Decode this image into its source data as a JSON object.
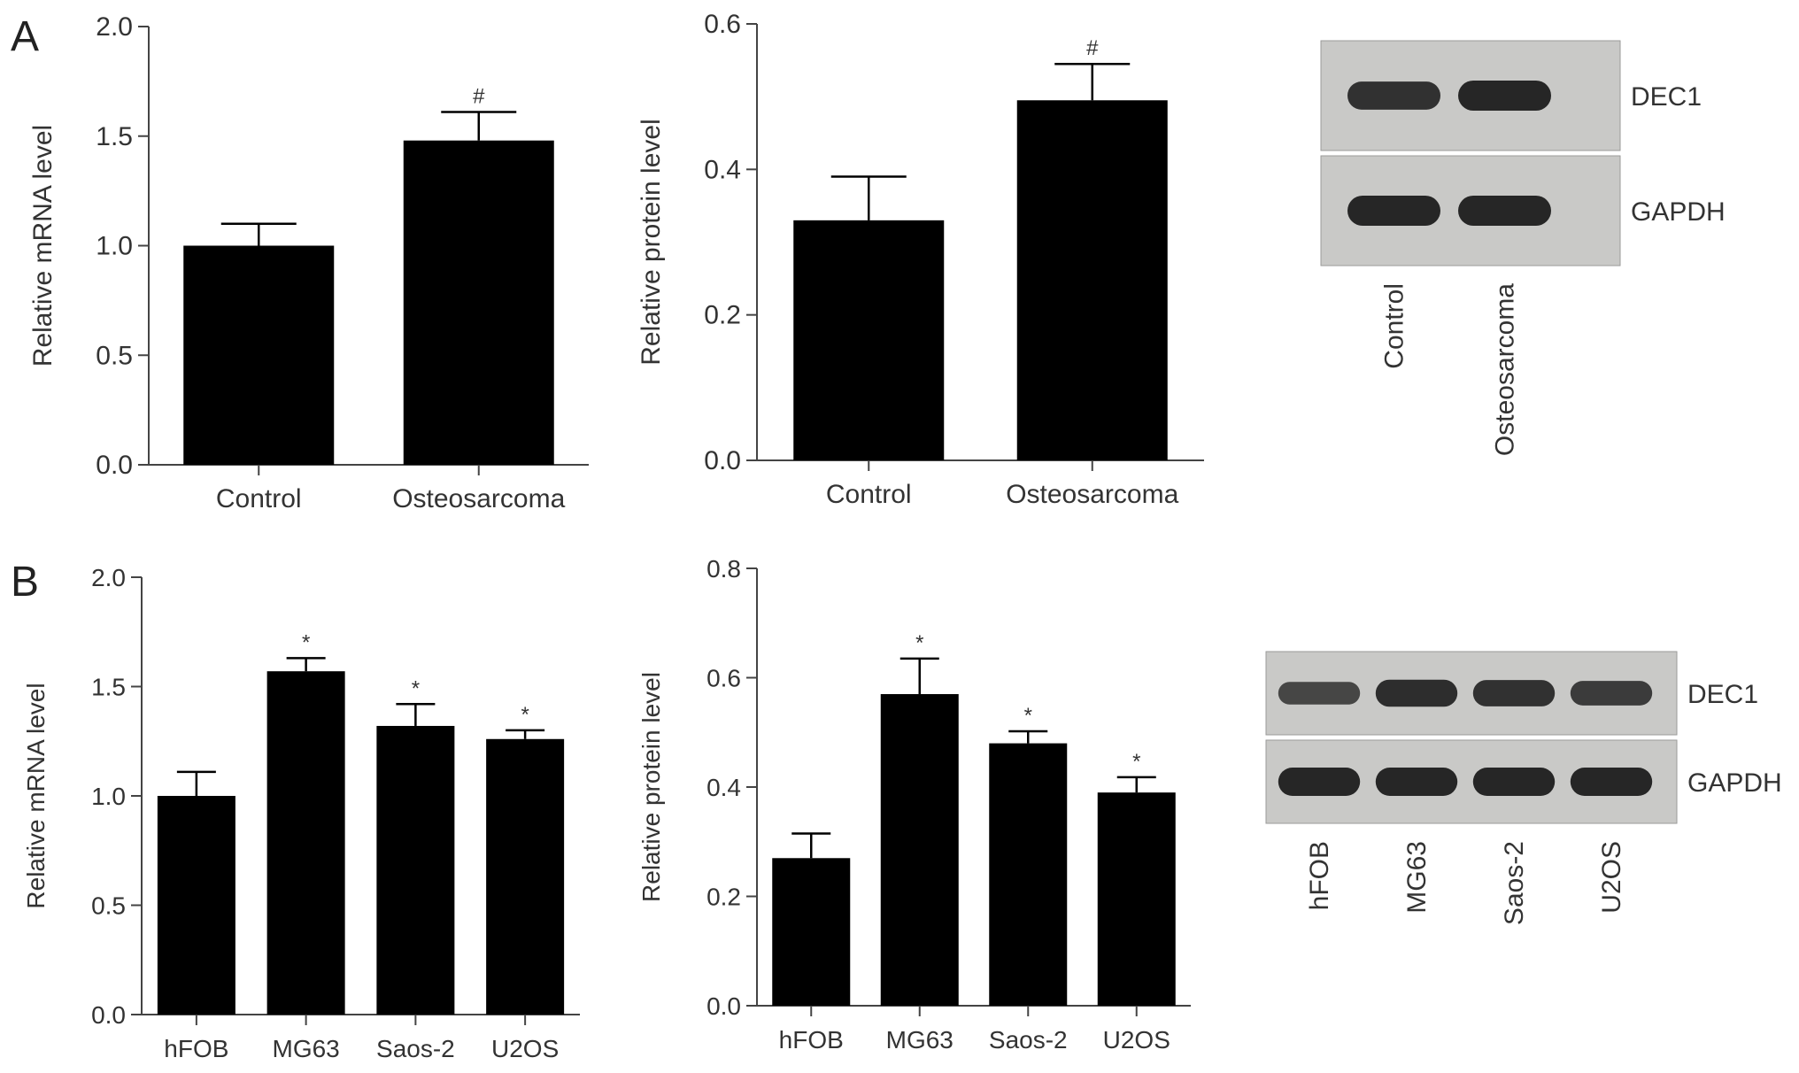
{
  "panels": [
    {
      "letter": "A"
    },
    {
      "letter": "B"
    }
  ],
  "chart_data": [
    {
      "id": "a-mrna",
      "panel": "A",
      "type": "bar",
      "title": "",
      "xlabel": "",
      "ylabel": "Relative mRNA level",
      "categories": [
        "Control",
        "Osteosarcoma"
      ],
      "values": [
        1.0,
        1.48
      ],
      "errors": [
        0.1,
        0.13
      ],
      "annotations": [
        "",
        "#"
      ],
      "ylim": [
        0,
        2.0
      ],
      "yticks": [
        "0.0",
        "0.5",
        "1.0",
        "1.5",
        "2.0"
      ],
      "grid": false,
      "legend": "none"
    },
    {
      "id": "a-protein",
      "panel": "A",
      "type": "bar",
      "title": "",
      "xlabel": "",
      "ylabel": "Relative protein level",
      "categories": [
        "Control",
        "Osteosarcoma"
      ],
      "values": [
        0.33,
        0.495
      ],
      "errors": [
        0.06,
        0.05
      ],
      "annotations": [
        "",
        "#"
      ],
      "ylim": [
        0,
        0.6
      ],
      "yticks": [
        "0.0",
        "0.2",
        "0.4",
        "0.6"
      ],
      "grid": false,
      "legend": "none"
    },
    {
      "id": "b-mrna",
      "panel": "B",
      "type": "bar",
      "title": "",
      "xlabel": "",
      "ylabel": "Relative mRNA level",
      "categories": [
        "hFOB",
        "MG63",
        "Saos-2",
        "U2OS"
      ],
      "values": [
        1.0,
        1.57,
        1.32,
        1.26
      ],
      "errors": [
        0.11,
        0.06,
        0.1,
        0.04
      ],
      "annotations": [
        "",
        "*",
        "*",
        "*"
      ],
      "ylim": [
        0,
        2.0
      ],
      "yticks": [
        "0.0",
        "0.5",
        "1.0",
        "1.5",
        "2.0"
      ],
      "grid": false,
      "legend": "none"
    },
    {
      "id": "b-protein",
      "panel": "B",
      "type": "bar",
      "title": "",
      "xlabel": "",
      "ylabel": "Relative protein level",
      "categories": [
        "hFOB",
        "MG63",
        "Saos-2",
        "U2OS"
      ],
      "values": [
        0.27,
        0.57,
        0.48,
        0.39
      ],
      "errors": [
        0.045,
        0.065,
        0.022,
        0.028
      ],
      "annotations": [
        "",
        "*",
        "*",
        "*"
      ],
      "ylim": [
        0,
        0.8
      ],
      "yticks": [
        "0.0",
        "0.2",
        "0.4",
        "0.6",
        "0.8"
      ],
      "grid": false,
      "legend": "none"
    }
  ],
  "blots": [
    {
      "id": "a-blot",
      "panel": "A",
      "rows": [
        "DEC1",
        "GAPDH"
      ],
      "lanes": [
        "Control",
        "Osteosarcoma"
      ],
      "band_intensity": {
        "DEC1": [
          0.85,
          1.0
        ],
        "GAPDH": [
          1.0,
          1.0
        ]
      }
    },
    {
      "id": "b-blot",
      "panel": "B",
      "rows": [
        "DEC1",
        "GAPDH"
      ],
      "lanes": [
        "hFOB",
        "MG63",
        "Saos-2",
        "U2OS"
      ],
      "band_intensity": {
        "DEC1": [
          0.55,
          0.9,
          0.85,
          0.7
        ],
        "GAPDH": [
          1.0,
          1.0,
          1.0,
          1.0
        ]
      }
    }
  ],
  "colors": {
    "bar": "#000000",
    "axis": "#444444",
    "text": "#333333",
    "blot_bg": "#c9c9c7",
    "band": "#1e1e1e",
    "annotation": "#666666"
  }
}
